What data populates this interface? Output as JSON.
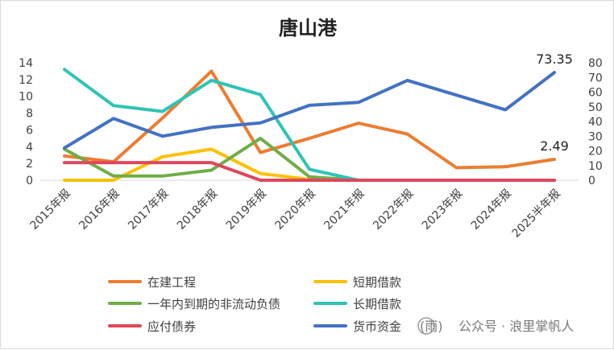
{
  "chart_data": {
    "type": "line",
    "title": "唐山港",
    "categories": [
      "2015年报",
      "2016年报",
      "2017年报",
      "2018年报",
      "2019年报",
      "2020年报",
      "2021年报",
      "2022年报",
      "2023年报",
      "2024年报",
      "2025半年报"
    ],
    "left_axis": {
      "min": 0,
      "max": 14,
      "ticks": [
        "0",
        "2",
        "4",
        "6",
        "8",
        "10",
        "12",
        "14"
      ]
    },
    "right_axis": {
      "min": 0,
      "max": 80,
      "ticks": [
        "0",
        "10",
        "20",
        "30",
        "40",
        "50",
        "60",
        "70",
        "80"
      ]
    },
    "series": [
      {
        "name": "在建工程",
        "axis": "left",
        "color": "#ED7D31",
        "values": [
          2.9,
          2.2,
          7.4,
          13.0,
          3.3,
          5.0,
          6.8,
          5.5,
          1.5,
          1.6,
          2.49
        ]
      },
      {
        "name": "短期借款",
        "axis": "left",
        "color": "#FFC000",
        "values": [
          0,
          0,
          2.8,
          3.7,
          0.8,
          0.1,
          0,
          0,
          0,
          0,
          0
        ]
      },
      {
        "name": "一年内到期的非流动负债",
        "axis": "left",
        "color": "#70AD47",
        "values": [
          3.7,
          0.5,
          0.5,
          1.2,
          5.0,
          0.4,
          0,
          0,
          0,
          0,
          0
        ]
      },
      {
        "name": "长期借款",
        "axis": "left",
        "color": "#2EC4B6",
        "values": [
          13.2,
          8.9,
          8.2,
          11.9,
          10.2,
          1.3,
          0,
          0,
          0,
          0,
          0
        ]
      },
      {
        "name": "应付债券",
        "axis": "left",
        "color": "#E0475C",
        "values": [
          2.1,
          2.1,
          2.1,
          2.1,
          0,
          0,
          0,
          0,
          0,
          0,
          0
        ]
      },
      {
        "name": "货币资金",
        "axis": "right",
        "color": "#4472C4",
        "values": [
          22,
          42,
          30,
          36,
          39,
          51,
          53,
          68,
          58,
          48,
          73.35
        ]
      }
    ],
    "data_labels": [
      {
        "series": "货币资金",
        "category": "2025半年报",
        "text": "73.35"
      },
      {
        "series": "在建工程",
        "category": "2025半年报",
        "text": "2.49"
      }
    ],
    "legend_position": "bottom",
    "grid": false
  },
  "watermark": {
    "text": "公众号 · 浪里掌帆人",
    "prefix": "(雨)"
  }
}
